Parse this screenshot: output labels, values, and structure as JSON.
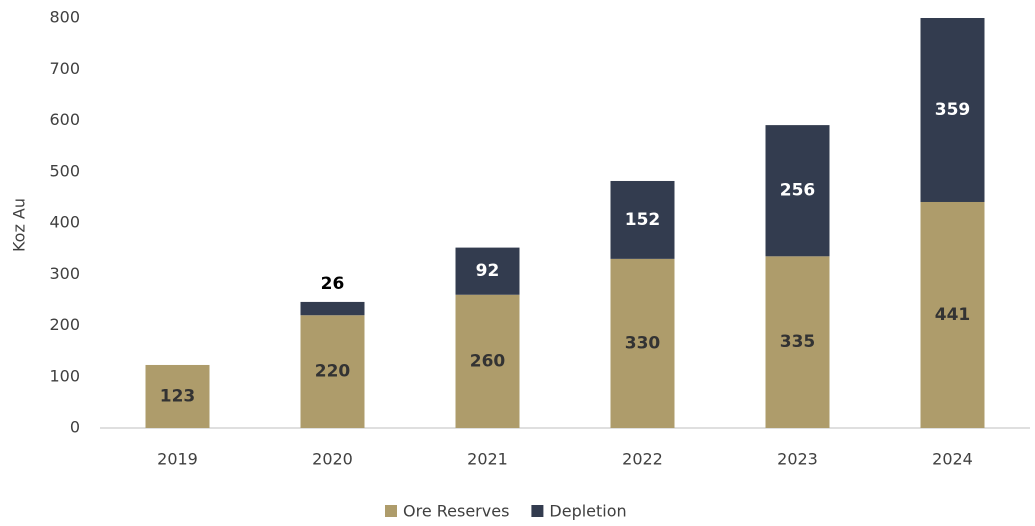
{
  "chart_data": {
    "type": "stacked_bar",
    "y_label": "Koz Au",
    "categories": [
      "2019",
      "2020",
      "2021",
      "2022",
      "2023",
      "2024"
    ],
    "series": [
      {
        "name": "Ore Reserves",
        "color": "#ae9c6b",
        "values": [
          123,
          220,
          260,
          330,
          335,
          441
        ]
      },
      {
        "name": "Depletion",
        "color": "#333c4f",
        "values": [
          null,
          26,
          92,
          152,
          256,
          359
        ]
      }
    ],
    "ylim": [
      0,
      800
    ],
    "yticks": [
      0,
      100,
      200,
      300,
      400,
      500,
      600,
      700,
      800
    ],
    "grid": false,
    "legend": "bottom"
  }
}
